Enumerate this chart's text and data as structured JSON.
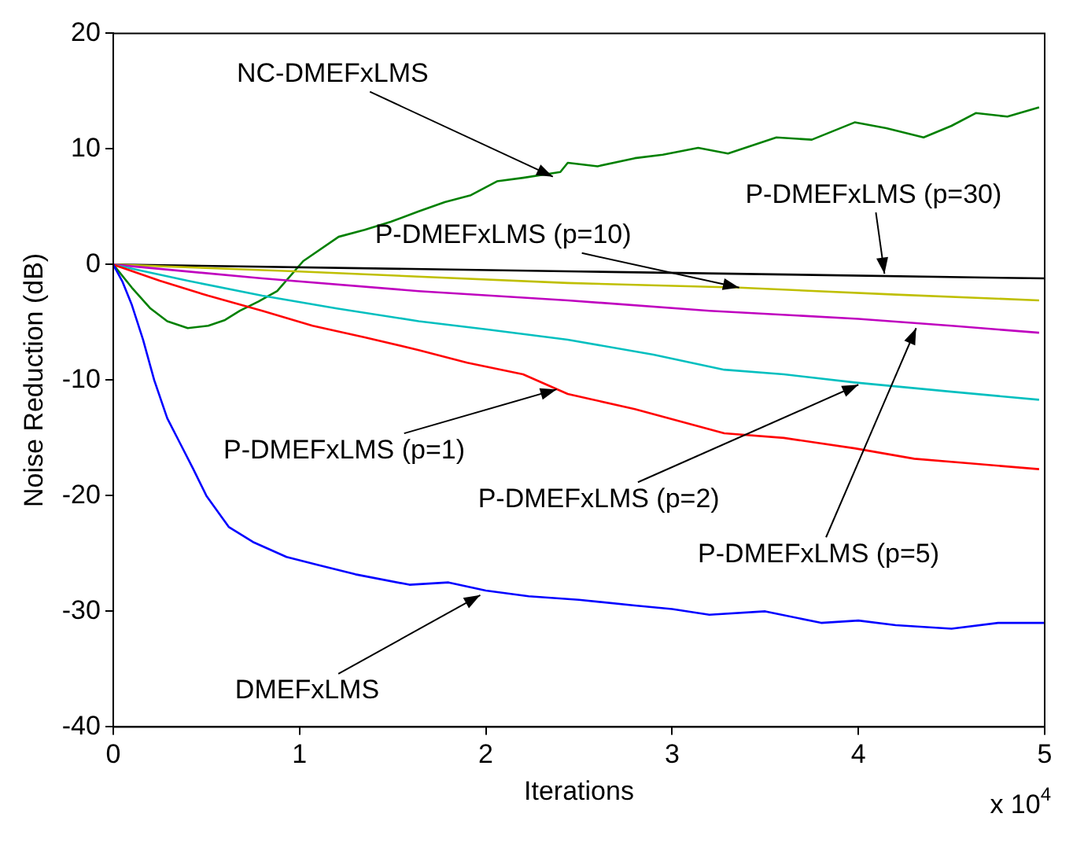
{
  "chart_data": {
    "type": "line",
    "xlabel": "Iterations",
    "ylabel": "Noise Reduction (dB)",
    "xlim": [
      0,
      5
    ],
    "xticks": [
      0,
      1,
      2,
      3,
      4,
      5
    ],
    "ylim": [
      -40,
      20
    ],
    "yticks": [
      -40,
      -30,
      -20,
      -10,
      0,
      10,
      20
    ],
    "grid": false,
    "legend": false,
    "marker": "none",
    "line_style": "solid",
    "series": [
      {
        "color": "#0000ff",
        "x": [
          0,
          0.05,
          0.1,
          0.16,
          0.22,
          0.29,
          0.36,
          0.43,
          0.5,
          0.62,
          0.75,
          0.93,
          1.1,
          1.3,
          1.59,
          1.8,
          2.0,
          2.23,
          2.5,
          2.8,
          3.0,
          3.2,
          3.5,
          3.8,
          4.0,
          4.2,
          4.5,
          4.75,
          5
        ],
        "values": [
          0,
          -1.5,
          -3.5,
          -6.5,
          -10,
          -13.3,
          -15.5,
          -17.7,
          -20,
          -22.7,
          -24,
          -25.3,
          -26,
          -26.8,
          -27.7,
          -27.5,
          -28.2,
          -28.7,
          -29,
          -29.5,
          -29.8,
          -30.3,
          -30,
          -31,
          -30.8,
          -31.2,
          -31.5,
          -31,
          -31
        ]
      },
      {
        "color": "#ff0000",
        "x": [
          0,
          0.25,
          0.51,
          0.8,
          1.07,
          1.35,
          1.64,
          1.9,
          2.2,
          2.44,
          2.8,
          3.28,
          3.6,
          3.98,
          4.3,
          4.6,
          4.97
        ],
        "values": [
          0,
          -1.4,
          -2.7,
          -4,
          -5.3,
          -6.3,
          -7.4,
          -8.5,
          -9.5,
          -11.2,
          -12.5,
          -14.6,
          -15,
          -15.9,
          -16.8,
          -17.2,
          -17.7
        ]
      },
      {
        "color": "#00bfbf",
        "x": [
          0,
          0.4,
          0.8,
          1.2,
          1.64,
          2.0,
          2.44,
          2.9,
          3.28,
          3.6,
          3.98,
          4.5,
          4.97
        ],
        "values": [
          0,
          -1.4,
          -2.7,
          -3.8,
          -4.9,
          -5.6,
          -6.5,
          -7.8,
          -9.1,
          -9.5,
          -10.2,
          -11,
          -11.7
        ]
      },
      {
        "color": "#bf00bf",
        "x": [
          0,
          0.8,
          1.64,
          2.44,
          3.2,
          4.0,
          4.5,
          4.97
        ],
        "values": [
          0,
          -1.2,
          -2.3,
          -3.1,
          -4,
          -4.7,
          -5.3,
          -5.9
        ]
      },
      {
        "color": "#bfbf00",
        "x": [
          0,
          1.0,
          2.44,
          3.36,
          4.2,
          4.97
        ],
        "values": [
          0,
          -0.6,
          -1.6,
          -2,
          -2.6,
          -3.1
        ]
      },
      {
        "color": "#000000",
        "x": [
          0,
          2.5,
          5
        ],
        "values": [
          0,
          -0.6,
          -1.2
        ]
      },
      {
        "color": "#008000",
        "x": [
          0,
          0.1,
          0.2,
          0.29,
          0.4,
          0.51,
          0.6,
          0.68,
          0.78,
          0.88,
          1.02,
          1.21,
          1.35,
          1.49,
          1.64,
          1.78,
          1.92,
          2.06,
          2.2,
          2.4,
          2.44,
          2.6,
          2.8,
          2.95,
          3.14,
          3.3,
          3.56,
          3.75,
          3.98,
          4.15,
          4.35,
          4.5,
          4.63,
          4.8,
          4.97
        ],
        "values": [
          0,
          -2,
          -3.8,
          -4.9,
          -5.5,
          -5.3,
          -4.8,
          -4,
          -3.2,
          -2.3,
          0.3,
          2.4,
          3,
          3.7,
          4.6,
          5.4,
          6,
          7.2,
          7.5,
          8,
          8.8,
          8.5,
          9.2,
          9.5,
          10.1,
          9.6,
          11,
          10.8,
          12.3,
          11.8,
          11,
          12,
          13.1,
          12.8,
          13.6
        ]
      }
    ],
    "annotations": [
      {
        "text": "NC-DMEFxLMS",
        "x": 2.36,
        "y": 7.6
      },
      {
        "text": "P-DMEFxLMS (p=10)",
        "x": 3.36,
        "y": -2
      },
      {
        "text": "P-DMEFxLMS (p=30)",
        "x": 4.14,
        "y": -0.8
      },
      {
        "text": "P-DMEFxLMS (p=1)",
        "x": 2.38,
        "y": -10.8
      },
      {
        "text": "P-DMEFxLMS (p=2)",
        "x": 4.0,
        "y": -10.4
      },
      {
        "text": "P-DMEFxLMS (p=5)",
        "x": 4.31,
        "y": -5.5
      },
      {
        "text": "DMEFxLMS",
        "x": 1.97,
        "y": -28.6
      },
      "x 10$^{4}$"
    ]
  }
}
